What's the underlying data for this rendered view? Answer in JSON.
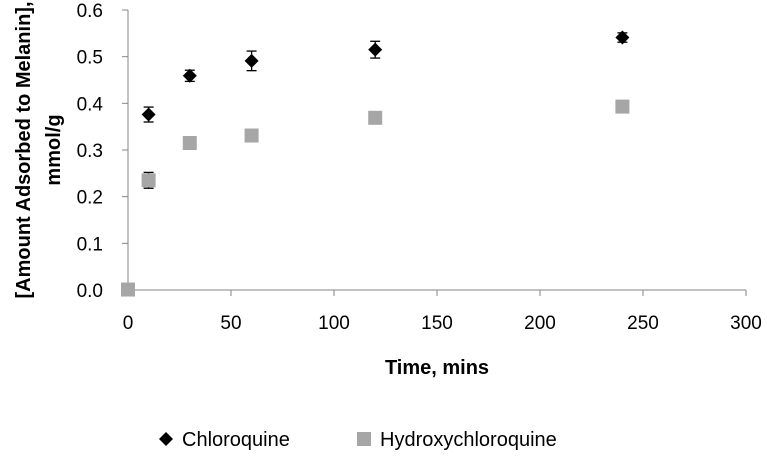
{
  "chart_data": {
    "type": "scatter",
    "xlabel": "Time, mins",
    "ylabel_lines": [
      "[Amount Adsorbed to Melanin],",
      "mmol/g"
    ],
    "xlim": [
      0,
      300
    ],
    "ylim": [
      0,
      0.6
    ],
    "x_ticks": [
      "0",
      "50",
      "100",
      "150",
      "200",
      "250",
      "300"
    ],
    "y_ticks": [
      "0.0",
      "0.1",
      "0.2",
      "0.3",
      "0.4",
      "0.5",
      "0.6"
    ],
    "grid": false,
    "legend_position": "bottom",
    "series": [
      {
        "name": "Chloroquine",
        "marker": "diamond",
        "color": "#000000",
        "points": [
          {
            "x": 10,
            "y": 0.376,
            "err": 0.016
          },
          {
            "x": 30,
            "y": 0.459,
            "err": 0.012
          },
          {
            "x": 60,
            "y": 0.491,
            "err": 0.021
          },
          {
            "x": 120,
            "y": 0.515,
            "err": 0.018
          },
          {
            "x": 240,
            "y": 0.541,
            "err": 0.01
          }
        ]
      },
      {
        "name": "Hydroxychloroquine",
        "marker": "square",
        "color": "#a6a6a6",
        "points": [
          {
            "x": 0,
            "y": 0.001,
            "err": 0
          },
          {
            "x": 10,
            "y": 0.235,
            "err": 0.017
          },
          {
            "x": 30,
            "y": 0.315,
            "err": 0
          },
          {
            "x": 60,
            "y": 0.331,
            "err": 0
          },
          {
            "x": 120,
            "y": 0.369,
            "err": 0
          },
          {
            "x": 240,
            "y": 0.393,
            "err": 0
          }
        ]
      }
    ]
  }
}
